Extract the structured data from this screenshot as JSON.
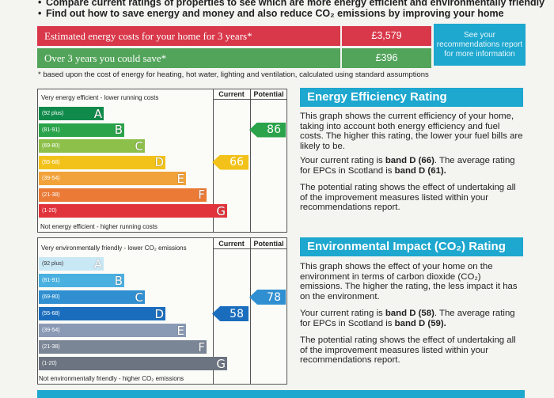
{
  "bullets": [
    "Compare current ratings of properties to see which are more energy efficient and environmentally friendly",
    "Find out how to save energy and money and also reduce CO₂ emissions by improving your home"
  ],
  "costs": {
    "estimated_label": "Estimated energy costs for your home for 3 years*",
    "estimated_value": "£3,579",
    "savings_label": "Over 3 years you could save*",
    "savings_value": "£396",
    "recommendation_box": "See your recommendations report for more information",
    "footnote": "* based upon the cost of energy for heating, hot water, lighting and ventilation, calculated using standard assumptions"
  },
  "energy_chart": {
    "top_label": "Very energy efficient - lower running costs",
    "bottom_label": "Not energy efficient - higher running costs",
    "current_header": "Current",
    "potential_header": "Potential",
    "bands": [
      {
        "range": "(92 plus)",
        "letter": "A",
        "color": "#0f8a4a"
      },
      {
        "range": "(81-91)",
        "letter": "B",
        "color": "#2aa34a"
      },
      {
        "range": "(69-80)",
        "letter": "C",
        "color": "#8cc04a"
      },
      {
        "range": "(55-68)",
        "letter": "D",
        "color": "#f2c21b"
      },
      {
        "range": "(39-54)",
        "letter": "E",
        "color": "#f2a23a"
      },
      {
        "range": "(21-38)",
        "letter": "F",
        "color": "#ea7a35"
      },
      {
        "range": "(1-20)",
        "letter": "G",
        "color": "#e0333c"
      }
    ],
    "current": 66,
    "current_color": "#f2c21b",
    "potential": 86,
    "potential_color": "#2aa34a"
  },
  "env_chart": {
    "top_label": "Very environmentally friendly - lower CO₂ emissions",
    "bottom_label": "Not environmentally friendly - higher CO₂ emissions",
    "current_header": "Current",
    "potential_header": "Potential",
    "bands": [
      {
        "range": "(92 plus)",
        "letter": "A",
        "color": "#c9e8f5"
      },
      {
        "range": "(81-91)",
        "letter": "B",
        "color": "#4ab0e0"
      },
      {
        "range": "(69-80)",
        "letter": "C",
        "color": "#2f8fd0"
      },
      {
        "range": "(55-68)",
        "letter": "D",
        "color": "#1a6dbd"
      },
      {
        "range": "(39-54)",
        "letter": "E",
        "color": "#8a9ab5"
      },
      {
        "range": "(21-38)",
        "letter": "F",
        "color": "#7a8595"
      },
      {
        "range": "(1-20)",
        "letter": "G",
        "color": "#6b7480"
      }
    ],
    "current": 58,
    "current_color": "#1a6dbd",
    "potential": 78,
    "potential_color": "#2f8fd0"
  },
  "energy_text": {
    "heading": "Energy Efficiency Rating",
    "p1": "This graph shows the current efficiency of your home, taking into account both energy efficiency and fuel costs. The higher this rating, the lower your fuel bills are likely to be.",
    "p2_pre": "Your current rating is ",
    "p2_band1": "band D (66)",
    "p2_mid": ". The average rating for EPCs in Scotland is ",
    "p2_band2": "band D (61).",
    "p3": "The potential rating shows the effect of undertaking all of the improvement measures listed within your recommendations report."
  },
  "env_text": {
    "heading": "Environmental Impact (CO₂) Rating",
    "p1": "This graph shows the effect of your home on the environment in terms of carbon dioxide (CO₂) emissions. The higher the rating, the less impact it has on the environment.",
    "p2_pre": "Your current rating is ",
    "p2_band1": "band D (58)",
    "p2_mid": ". The average rating for EPCs in Scotland is ",
    "p2_band2": "band D (59).",
    "p3": "The potential rating shows the effect of undertaking all of the improvement measures listed within your recommendations report."
  }
}
